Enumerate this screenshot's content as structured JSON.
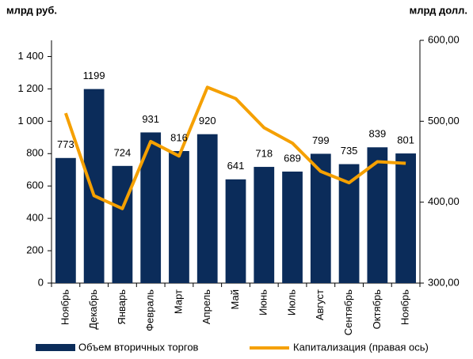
{
  "chart_data": {
    "type": "bar-line",
    "ylabel": "млрд руб.",
    "y2label": "млрд долл.",
    "categories": [
      "Ноябрь",
      "Декабрь",
      "Январь",
      "Февраль",
      "Март",
      "Апрель",
      "Май",
      "Июнь",
      "Июль",
      "Август",
      "Сентябрь",
      "Октябрь",
      "Ноябрь"
    ],
    "series": [
      {
        "name": "Объем вторичных торгов",
        "color": "#0b2c5a",
        "type": "bar",
        "axis": "y",
        "values": [
          773,
          1199,
          724,
          931,
          816,
          920,
          641,
          718,
          689,
          799,
          735,
          839,
          801
        ]
      },
      {
        "name": "Капитализация (правая ось)",
        "color": "#f5a000",
        "type": "line",
        "axis": "y2",
        "values": [
          510,
          408,
          392,
          475,
          457,
          542,
          528,
          492,
          473,
          438,
          424,
          450,
          448
        ]
      }
    ],
    "ylim": [
      0,
      1500
    ],
    "yticks": [
      0,
      200,
      400,
      600,
      800,
      {
        "value": 1000,
        "label": "1 000"
      },
      {
        "value": 1200,
        "label": "1 200"
      },
      {
        "value": 1400,
        "label": "1 400"
      }
    ],
    "y2lim": [
      300,
      600
    ],
    "y2ticks": [
      {
        "value": 300,
        "label": "300,00"
      },
      {
        "value": 400,
        "label": "400,00"
      },
      {
        "value": 500,
        "label": "500,00"
      },
      {
        "value": 600,
        "label": "600,00"
      }
    ]
  }
}
